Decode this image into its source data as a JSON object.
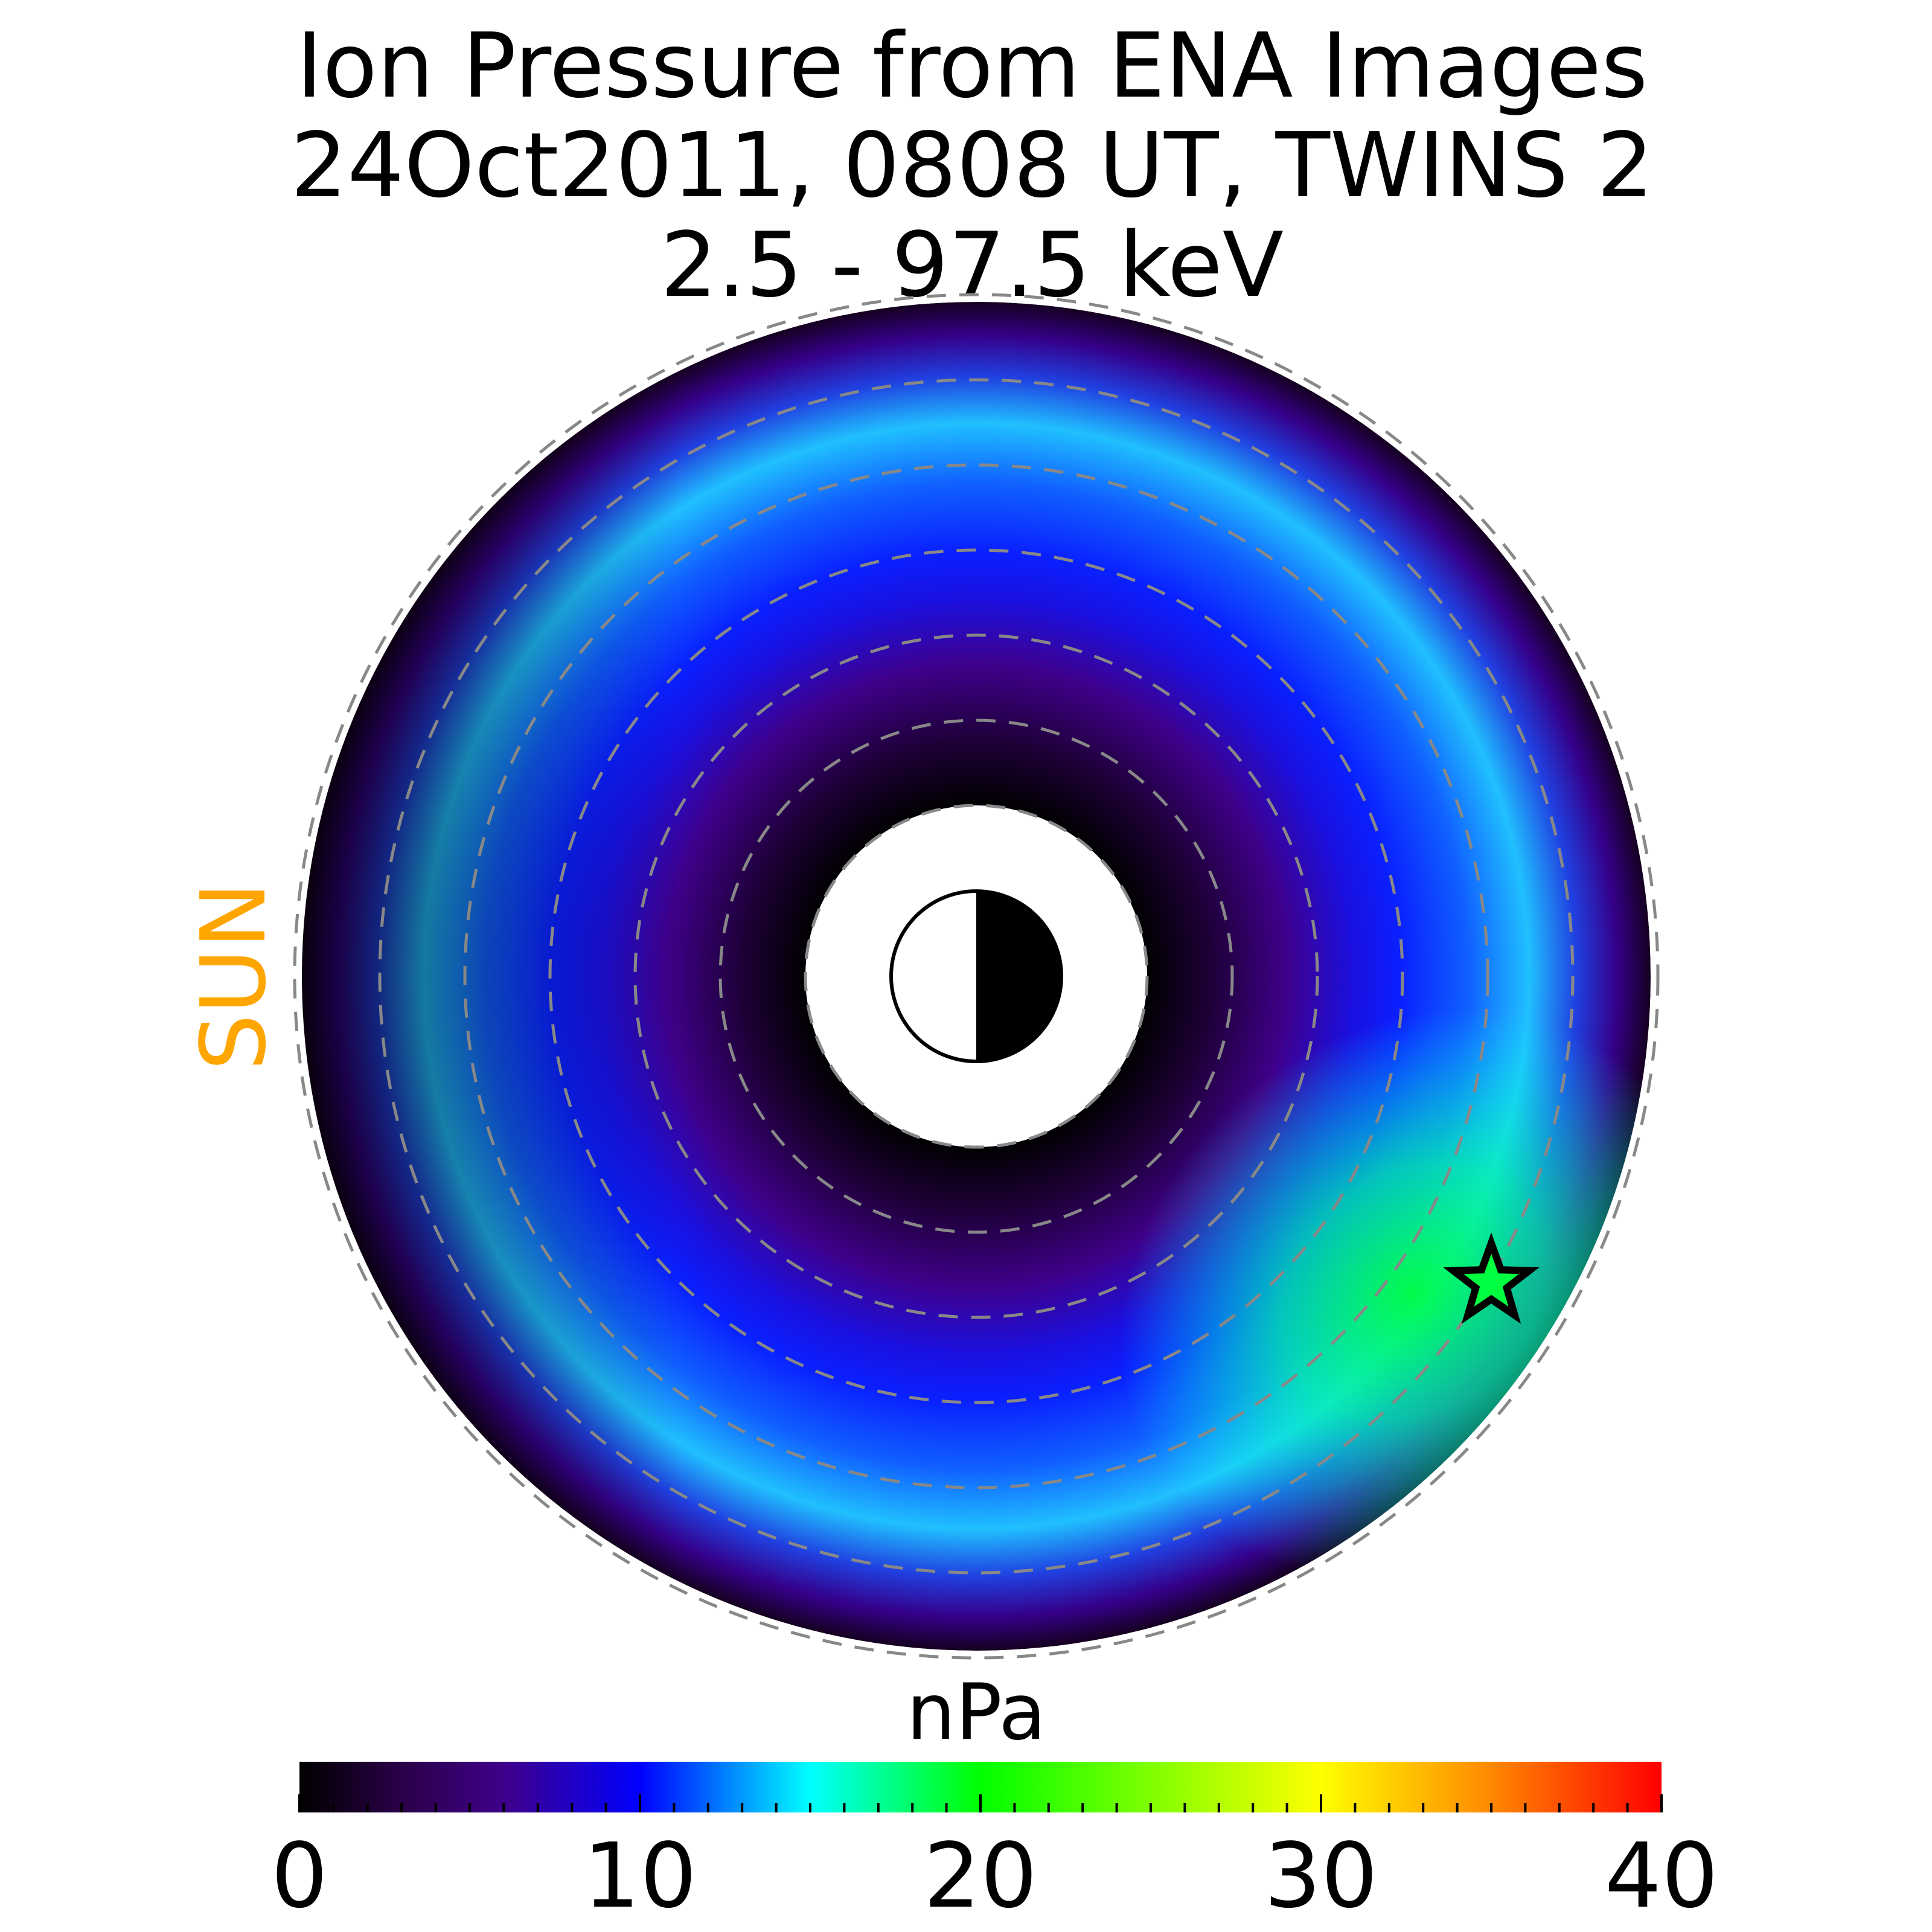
{
  "chart_data": {
    "type": "heatmap",
    "title_lines": [
      "Ion Pressure from  ENA Images",
      "24Oct2011, 0808 UT,  TWINS 2",
      "2.5 - 97.5 keV"
    ],
    "sun_label": "SUN",
    "colorbar": {
      "unit_label": "nPa",
      "range": [
        0,
        40
      ],
      "ticks": [
        "0",
        "10",
        "20",
        "30",
        "40"
      ],
      "colormap_stops": [
        {
          "value": 0,
          "color": "#000000"
        },
        {
          "value": 3,
          "color": "#2a0048"
        },
        {
          "value": 6,
          "color": "#3f008a"
        },
        {
          "value": 10,
          "color": "#0000ff"
        },
        {
          "value": 15,
          "color": "#00ffff"
        },
        {
          "value": 20,
          "color": "#00ff00"
        },
        {
          "value": 30,
          "color": "#ffff00"
        },
        {
          "value": 35,
          "color": "#ff8800"
        },
        {
          "value": 40,
          "color": "#ff0000"
        }
      ]
    },
    "rings": [
      {
        "name": "inner-rim",
        "value": 1.5
      },
      {
        "name": "inner-ring",
        "value": 5
      },
      {
        "name": "middle-gap",
        "value": 6
      },
      {
        "name": "outer-ring",
        "value": 14
      },
      {
        "name": "outer-edge",
        "value": 2
      }
    ],
    "enhancement_peak_value": 22,
    "marker": "star",
    "earth_symbol": "half-lit circle, dayside toward Sun"
  }
}
